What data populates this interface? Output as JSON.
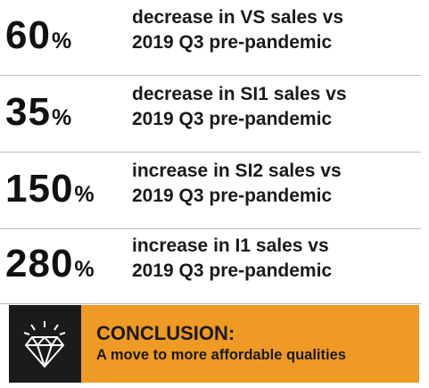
{
  "stats": [
    {
      "value": "60",
      "unit": "%",
      "line1": "decrease in VS sales vs",
      "line2": "2019 Q3 pre-pandemic"
    },
    {
      "value": "35",
      "unit": "%",
      "line1": "decrease in SI1 sales vs",
      "line2": "2019 Q3 pre-pandemic"
    },
    {
      "value": "150",
      "unit": "%",
      "line1": "increase in SI2 sales vs",
      "line2": "2019 Q3 pre-pandemic"
    },
    {
      "value": "280",
      "unit": "%",
      "line1": "increase in I1 sales vs",
      "line2": "2019 Q3 pre-pandemic"
    }
  ],
  "conclusion": {
    "title": "CONCLUSION:",
    "text": "A move to more affordable qualities",
    "icon": "diamond-icon",
    "accent_color": "#ef9a24",
    "icon_bg_color": "#1b1b1b"
  }
}
